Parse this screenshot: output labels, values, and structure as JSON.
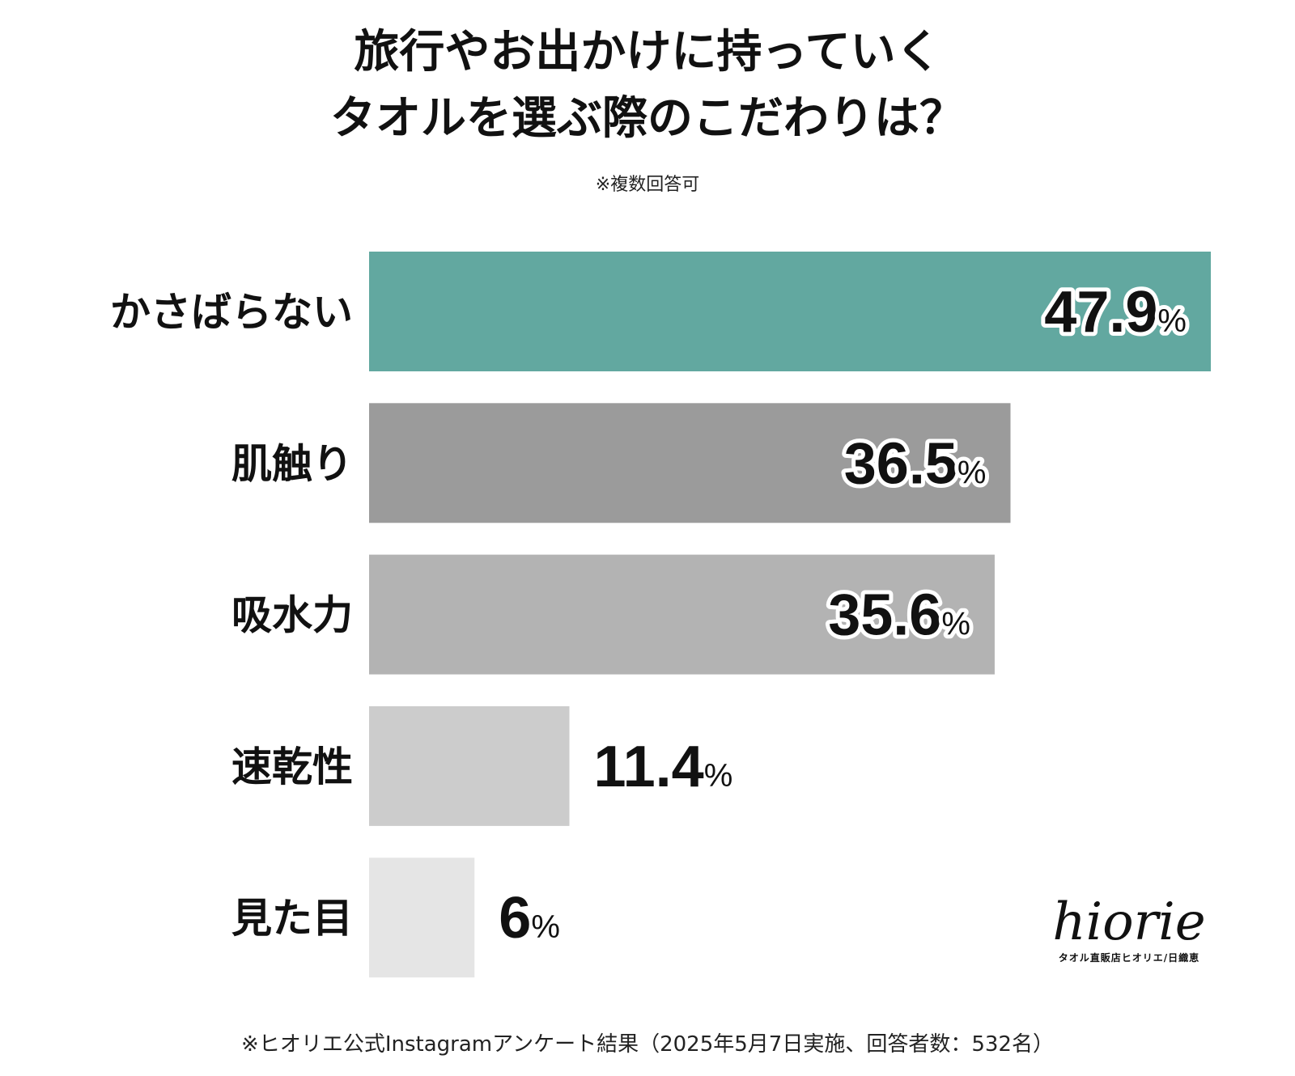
{
  "title_lines": [
    "旅行やお出かけに持っていく",
    "タオルを選ぶ際のこだわりは？"
  ],
  "subtitle": "※複数回答可",
  "footer": "※ヒオリエ公式Instagramアンケート結果（2025年5月7日実施、回答者数：532名）",
  "logo": {
    "wordmark": "hiorie",
    "tagline": "タオル直販店ヒオリエ/日織恵"
  },
  "chart_data": {
    "type": "bar",
    "orientation": "horizontal",
    "unit": "%",
    "categories": [
      "かさばらない",
      "肌触り",
      "吸水力",
      "速乾性",
      "見た目"
    ],
    "values": [
      47.9,
      36.5,
      35.6,
      11.4,
      6
    ],
    "labels": [
      "47.9",
      "36.5",
      "35.6",
      "11.4",
      "6"
    ],
    "colors": [
      "#62a8a0",
      "#9b9b9b",
      "#b3b3b3",
      "#cccccc",
      "#e5e5e5"
    ],
    "grid": false,
    "legend": "none"
  }
}
